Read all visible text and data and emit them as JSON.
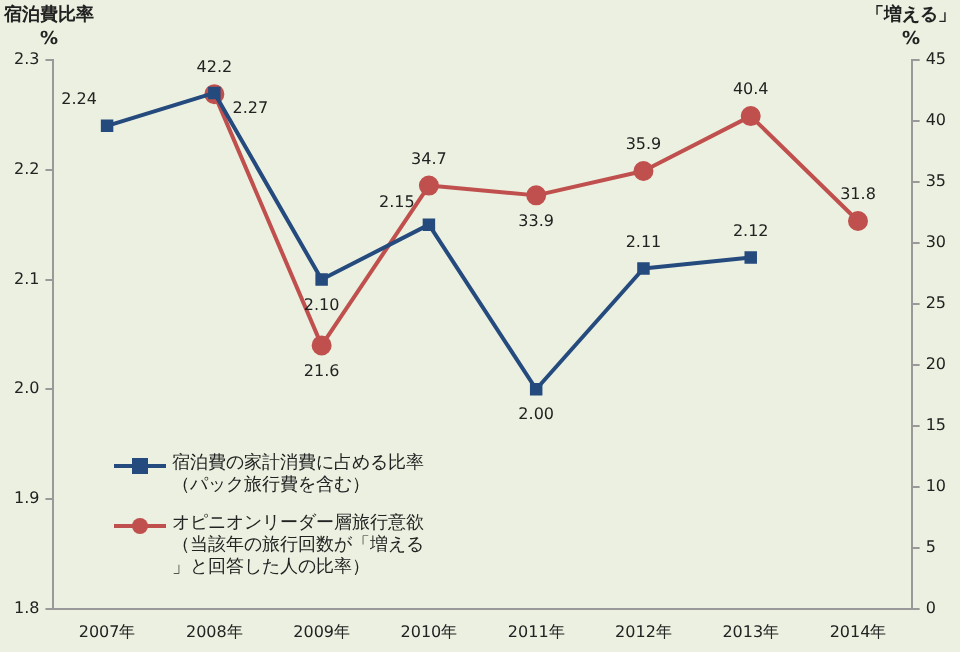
{
  "chart_data": {
    "type": "line",
    "ylabel": "宿泊費比率\n%",
    "y2label": "「増える」\n%",
    "categories": [
      "2007年",
      "2008年",
      "2009年",
      "2010年",
      "2011年",
      "2012年",
      "2013年",
      "2014年"
    ],
    "series": [
      {
        "name": "宿泊費の家計消費に占める比率（パック旅行費を含む）",
        "color": "#254a7d",
        "marker": "square",
        "values": [
          2.24,
          2.27,
          2.1,
          2.15,
          2.0,
          2.11,
          2.12,
          null
        ],
        "value_labels": [
          "2.24",
          "2.27",
          "2.10",
          "2.15",
          "2.00",
          "2.11",
          "2.12",
          null
        ]
      },
      {
        "name": "オピニオンリーダー層旅行意欲（当該年の旅行回数が「増える」と回答した人の比率）",
        "color": "#c0504d",
        "marker": "circle",
        "axis": "y2",
        "values": [
          null,
          42.2,
          21.6,
          34.7,
          33.9,
          35.9,
          40.4,
          31.8
        ],
        "value_labels": [
          null,
          "42.2",
          "21.6",
          "34.7",
          "33.9",
          "35.9",
          "40.4",
          "31.8"
        ]
      }
    ],
    "ylim": [
      1.8,
      2.3
    ],
    "yticks": [
      1.8,
      1.9,
      {
        "value": 2.0,
        "label": "2.0"
      },
      2.1,
      2.2,
      2.3
    ],
    "y2lim": [
      0,
      45
    ],
    "y2ticks": [
      0,
      5,
      10,
      15,
      20,
      25,
      30,
      35,
      40,
      45
    ],
    "grid": false,
    "legend": "bottom left"
  }
}
